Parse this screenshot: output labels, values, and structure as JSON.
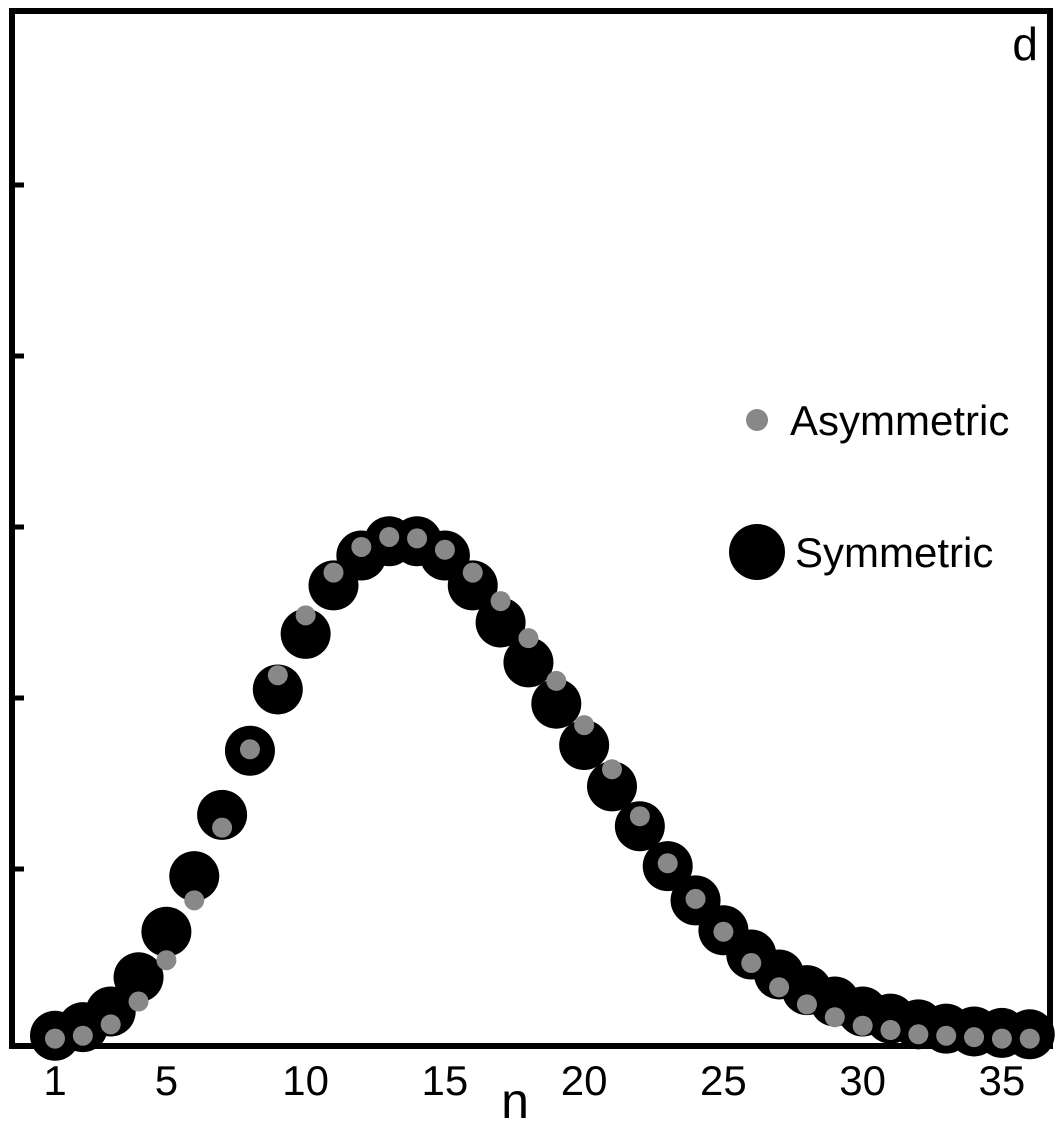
{
  "panel_label": "d",
  "chart_data": {
    "type": "scatter",
    "xlabel": "n",
    "ylabel": "",
    "xlim": [
      0,
      36.5
    ],
    "ylim": [
      0,
      6
    ],
    "x_ticks": [
      1,
      5,
      10,
      15,
      20,
      25,
      30,
      35
    ],
    "y_tick_count": 5,
    "grid": false,
    "legend_position": "right",
    "series": [
      {
        "name": "Asymmetric",
        "color": "#888888",
        "marker": "small-circle",
        "x": [
          1,
          2,
          3,
          4,
          5,
          6,
          7,
          8,
          9,
          10,
          11,
          12,
          13,
          14,
          15,
          16,
          17,
          18,
          19,
          20,
          21,
          22,
          23,
          24,
          25,
          26,
          27,
          28,
          29,
          30,
          31,
          32,
          33,
          34,
          35,
          36
        ],
        "y": [
          0.01,
          0.03,
          0.11,
          0.27,
          0.56,
          0.98,
          1.49,
          2.04,
          2.56,
          2.98,
          3.28,
          3.46,
          3.53,
          3.52,
          3.44,
          3.28,
          3.08,
          2.82,
          2.52,
          2.21,
          1.9,
          1.57,
          1.24,
          0.99,
          0.76,
          0.54,
          0.37,
          0.25,
          0.16,
          0.1,
          0.07,
          0.04,
          0.03,
          0.02,
          0.01,
          0.01
        ]
      },
      {
        "name": "Symmetric",
        "color": "#000000",
        "marker": "large-circle",
        "x": [
          1,
          2,
          3,
          4,
          5,
          6,
          7,
          8,
          9,
          10,
          11,
          12,
          13,
          14,
          15,
          16,
          17,
          18,
          19,
          20,
          21,
          22,
          23,
          24,
          25,
          26,
          27,
          28,
          29,
          30,
          31,
          32,
          33,
          34,
          35,
          36
        ],
        "y": [
          0.03,
          0.09,
          0.2,
          0.44,
          0.76,
          1.15,
          1.58,
          2.03,
          2.46,
          2.85,
          3.19,
          3.4,
          3.5,
          3.5,
          3.4,
          3.19,
          2.93,
          2.65,
          2.36,
          2.07,
          1.78,
          1.5,
          1.22,
          0.98,
          0.77,
          0.6,
          0.46,
          0.35,
          0.27,
          0.2,
          0.15,
          0.11,
          0.08,
          0.06,
          0.05,
          0.04
        ]
      }
    ]
  }
}
